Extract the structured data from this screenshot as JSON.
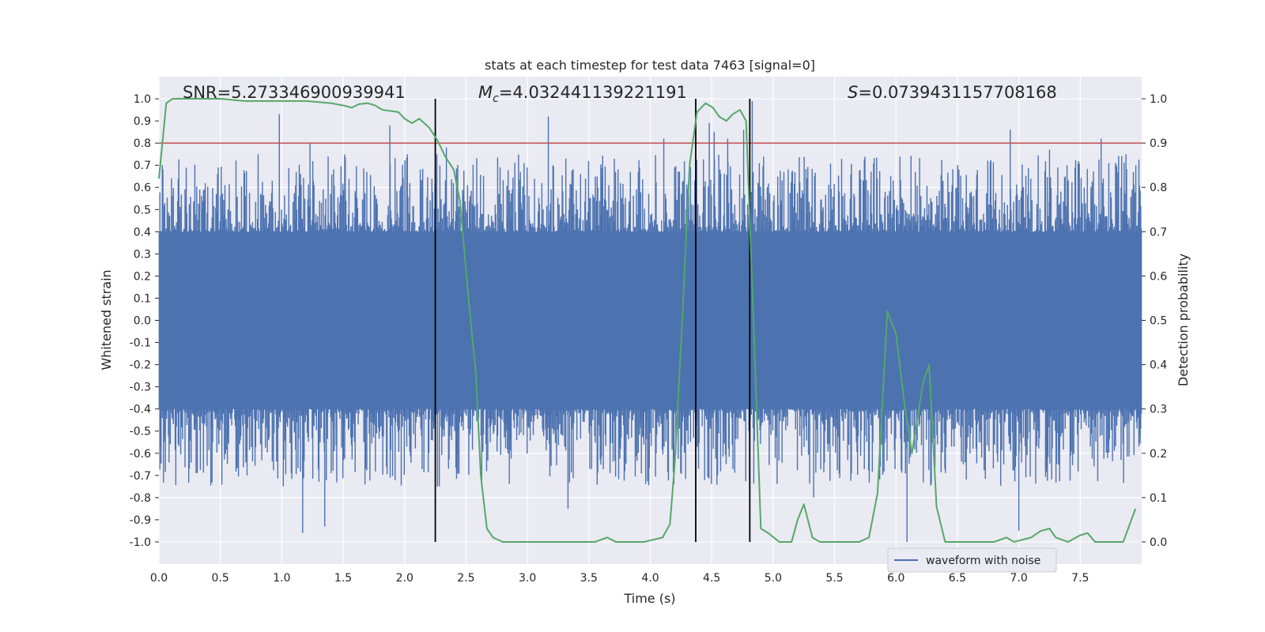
{
  "chart_data": {
    "type": "line",
    "title": "stats at each timestep for test data 7463 [signal=0]",
    "xlabel": "Time (s)",
    "ylabel": "Whitened strain",
    "y2label": "Detection probability",
    "xlim": [
      0.0,
      8.0
    ],
    "ylim": [
      -1.1,
      1.1
    ],
    "y2lim": [
      -0.05,
      1.05
    ],
    "xticks": [
      "0.0",
      "0.5",
      "1.0",
      "1.5",
      "2.0",
      "2.5",
      "3.0",
      "3.5",
      "4.0",
      "4.5",
      "5.0",
      "5.5",
      "6.0",
      "6.5",
      "7.0",
      "7.5"
    ],
    "yticks": [
      "1.0",
      "0.9",
      "0.8",
      "0.7",
      "0.6",
      "0.5",
      "0.4",
      "0.3",
      "0.2",
      "0.1",
      "0.0",
      "-0.1",
      "-0.2",
      "-0.3",
      "-0.4",
      "-0.5",
      "-0.6",
      "-0.7",
      "-0.8",
      "-0.9",
      "-1.0"
    ],
    "y2ticks": [
      "1.0",
      "0.9",
      "0.8",
      "0.7",
      "0.6",
      "0.5",
      "0.4",
      "0.3",
      "0.2",
      "0.1",
      "0.0"
    ],
    "annotations": {
      "snr": "SNR=5.273346900939941",
      "mc_symbol": "M",
      "mc_subscript": "c",
      "mc_value": "=4.032441139221191",
      "s_symbol": "S",
      "s_value": "=0.0739431157708168"
    },
    "legend": {
      "label": "waveform with noise",
      "placement": "lower-right"
    },
    "threshold_line": {
      "y2": 0.9,
      "color": "#c44e52"
    },
    "vertical_lines": {
      "x": [
        2.25,
        4.37,
        4.81
      ],
      "color": "#000000"
    },
    "waveform": {
      "name": "waveform with noise",
      "color": "#4c72b0",
      "band_min": -0.4,
      "band_max": 0.4,
      "envelope_points": 1600,
      "seed": 7463,
      "tall_spikes": [
        {
          "x": 0.98,
          "y": 0.93
        },
        {
          "x": 1.23,
          "y": 0.8
        },
        {
          "x": 1.88,
          "y": 0.88
        },
        {
          "x": 2.34,
          "y": 0.78
        },
        {
          "x": 3.17,
          "y": 0.92
        },
        {
          "x": 4.11,
          "y": 0.82
        },
        {
          "x": 4.48,
          "y": 0.89
        },
        {
          "x": 4.52,
          "y": 0.85
        },
        {
          "x": 4.63,
          "y": 0.82
        },
        {
          "x": 4.76,
          "y": 0.86
        },
        {
          "x": 4.83,
          "y": 0.99
        },
        {
          "x": 6.93,
          "y": 0.86
        },
        {
          "x": 7.25,
          "y": 0.77
        },
        {
          "x": 7.67,
          "y": 0.82
        },
        {
          "x": 1.17,
          "y": -0.96
        },
        {
          "x": 1.35,
          "y": -0.93
        },
        {
          "x": 3.33,
          "y": -0.85
        },
        {
          "x": 6.09,
          "y": -1.0
        },
        {
          "x": 7.0,
          "y": -0.95
        },
        {
          "x": 5.33,
          "y": -0.8
        }
      ]
    },
    "probability": {
      "name": "detection probability",
      "color": "#55a868",
      "x": [
        0.0,
        0.06,
        0.11,
        0.3,
        0.5,
        0.7,
        0.9,
        1.05,
        1.2,
        1.4,
        1.5,
        1.57,
        1.63,
        1.7,
        1.76,
        1.82,
        1.95,
        2.0,
        2.06,
        2.12,
        2.2,
        2.27,
        2.33,
        2.4,
        2.45,
        2.52,
        2.58,
        2.62,
        2.67,
        2.72,
        2.8,
        2.9,
        3.1,
        3.35,
        3.55,
        3.65,
        3.72,
        3.8,
        3.95,
        4.1,
        4.16,
        4.2,
        4.26,
        4.32,
        4.38,
        4.45,
        4.51,
        4.56,
        4.62,
        4.67,
        4.73,
        4.78,
        4.84,
        4.9,
        4.96,
        5.05,
        5.15,
        5.2,
        5.25,
        5.32,
        5.38,
        5.45,
        5.55,
        5.7,
        5.78,
        5.85,
        5.93,
        6.0,
        6.07,
        6.13,
        6.22,
        6.27,
        6.33,
        6.4,
        6.5,
        6.7,
        6.8,
        6.9,
        6.96,
        7.1,
        7.18,
        7.25,
        7.3,
        7.4,
        7.5,
        7.56,
        7.62,
        7.67,
        7.75,
        7.85,
        7.95
      ],
      "y": [
        0.82,
        0.99,
        1.0,
        1.0,
        1.0,
        0.995,
        0.995,
        0.995,
        0.995,
        0.99,
        0.985,
        0.98,
        0.988,
        0.99,
        0.985,
        0.975,
        0.97,
        0.955,
        0.945,
        0.955,
        0.935,
        0.905,
        0.87,
        0.84,
        0.77,
        0.55,
        0.38,
        0.15,
        0.03,
        0.01,
        0.0,
        0.0,
        0.0,
        0.0,
        0.0,
        0.01,
        0.0,
        0.0,
        0.0,
        0.01,
        0.04,
        0.18,
        0.5,
        0.85,
        0.97,
        0.99,
        0.98,
        0.96,
        0.95,
        0.965,
        0.975,
        0.95,
        0.5,
        0.03,
        0.02,
        0.0,
        0.0,
        0.05,
        0.085,
        0.01,
        0.0,
        0.0,
        0.0,
        0.0,
        0.01,
        0.11,
        0.52,
        0.47,
        0.31,
        0.2,
        0.36,
        0.4,
        0.08,
        0.0,
        0.0,
        0.0,
        0.0,
        0.01,
        0.0,
        0.01,
        0.025,
        0.03,
        0.01,
        0.0,
        0.015,
        0.02,
        0.0,
        0.0,
        0.0,
        0.0,
        0.075
      ]
    }
  }
}
